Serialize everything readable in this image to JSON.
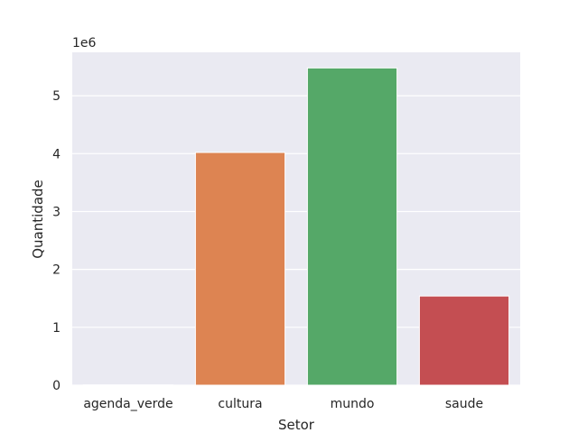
{
  "chart_data": {
    "type": "bar",
    "categories": [
      "agenda_verde",
      "cultura",
      "mundo",
      "saude"
    ],
    "values": [
      5000,
      4020000,
      5480000,
      1540000
    ],
    "xlabel": "Setor",
    "ylabel": "Quantidade",
    "y_offset_label": "1e6",
    "yticks": [
      0,
      1,
      2,
      3,
      4,
      5
    ],
    "ytick_labels": [
      "0",
      "1",
      "2",
      "3",
      "4",
      "5"
    ],
    "y_scale_multiplier": 1000000,
    "ylim": [
      0,
      5750000
    ],
    "grid": true,
    "colors": [
      "#4c72b0",
      "#dd8452",
      "#55a868",
      "#c44e52"
    ],
    "background": "#eaeaf2"
  }
}
